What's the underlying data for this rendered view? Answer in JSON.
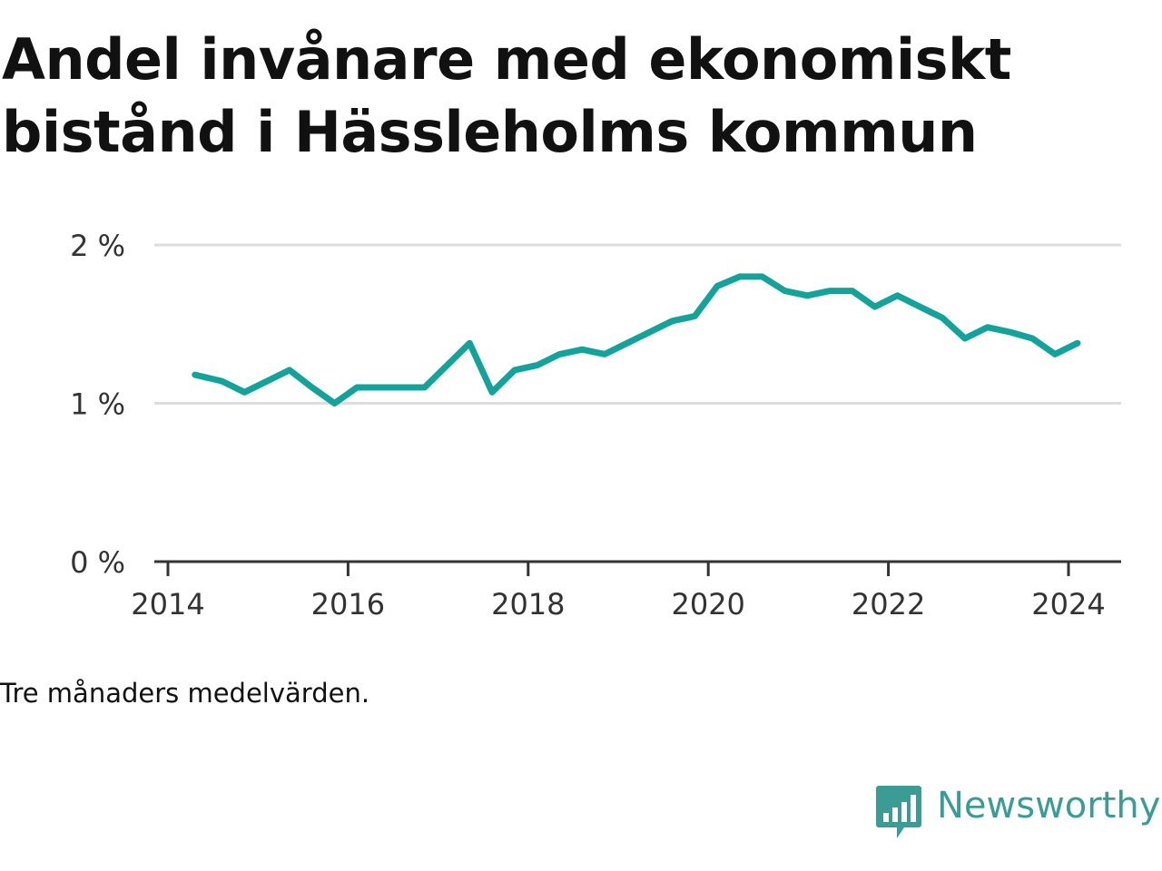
{
  "title": "Andel invånare med ekonomiskt bistånd i Hässleholms kommun",
  "note": "Tre månaders medelvärden.",
  "brand": {
    "name": "Newsworthy",
    "logo_icon": "bar-chart-speech-bubble-icon",
    "color": "#3a9c95"
  },
  "chart_data": {
    "type": "line",
    "title": "Andel invånare med ekonomiskt bistånd i Hässleholms kommun",
    "xlabel": "",
    "ylabel": "",
    "xlim": [
      2014.0,
      2024.8
    ],
    "ylim": [
      0,
      2
    ],
    "x_ticks": [
      2014,
      2016,
      2018,
      2020,
      2022,
      2024
    ],
    "x_tick_labels": [
      "2014",
      "2016",
      "2018",
      "2020",
      "2022",
      "2024"
    ],
    "y_ticks": [
      0,
      1,
      2
    ],
    "y_tick_labels": [
      "0 %",
      "1 %",
      "2 %"
    ],
    "grid": true,
    "legend": "none",
    "line_color": "#14a39a",
    "series": [
      {
        "x": [
          2014.3,
          2014.6,
          2014.85,
          2015.1,
          2015.35,
          2015.6,
          2015.85,
          2016.1,
          2016.35,
          2016.6,
          2016.85,
          2017.1,
          2017.35,
          2017.6,
          2017.85,
          2018.1,
          2018.35,
          2018.6,
          2018.85,
          2019.1,
          2019.35,
          2019.6,
          2019.85,
          2020.1,
          2020.35,
          2020.6,
          2020.85,
          2021.1,
          2021.35,
          2021.6,
          2021.85,
          2022.1,
          2022.35,
          2022.6,
          2022.85,
          2023.1,
          2023.35,
          2023.6,
          2023.85,
          2024.1
        ],
        "values": [
          1.18,
          1.14,
          1.07,
          1.14,
          1.21,
          1.1,
          1.0,
          1.1,
          1.1,
          1.1,
          1.1,
          1.24,
          1.38,
          1.07,
          1.21,
          1.24,
          1.31,
          1.34,
          1.31,
          1.38,
          1.45,
          1.52,
          1.55,
          1.74,
          1.8,
          1.8,
          1.71,
          1.68,
          1.71,
          1.71,
          1.61,
          1.68,
          1.61,
          1.54,
          1.41,
          1.48,
          1.45,
          1.41,
          1.31,
          1.38
        ]
      }
    ]
  }
}
